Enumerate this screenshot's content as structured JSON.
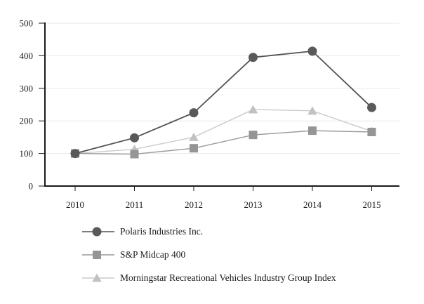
{
  "chart_data": {
    "type": "line",
    "title": "",
    "xlabel": "",
    "ylabel": "",
    "x": [
      "2010",
      "2011",
      "2012",
      "2013",
      "2014",
      "2015"
    ],
    "ylim": [
      0,
      500
    ],
    "yticks": [
      0,
      100,
      200,
      300,
      400,
      500
    ],
    "grid": true,
    "legend_position": "bottom-left",
    "series": [
      {
        "name": "Polaris Industries Inc.",
        "marker": "circle",
        "marker_color": "#5a5a5a",
        "line_color": "#525252",
        "values": [
          100,
          148,
          225,
          395,
          414,
          241
        ]
      },
      {
        "name": "S&P Midcap 400",
        "marker": "square",
        "marker_color": "#959595",
        "line_color": "#9a9a9a",
        "values": [
          100,
          98,
          116,
          157,
          170,
          166
        ]
      },
      {
        "name": "Morningstar Recreational Vehicles Industry Group Index",
        "marker": "triangle",
        "marker_color": "#c2c2c2",
        "line_color": "#cbcbcb",
        "values": [
          100,
          113,
          150,
          235,
          231,
          168
        ]
      }
    ],
    "colors": {
      "axis": "#1a1a1a",
      "gridline": "#e9e9e9",
      "text": "#1a1a1a",
      "background": "#ffffff"
    }
  }
}
